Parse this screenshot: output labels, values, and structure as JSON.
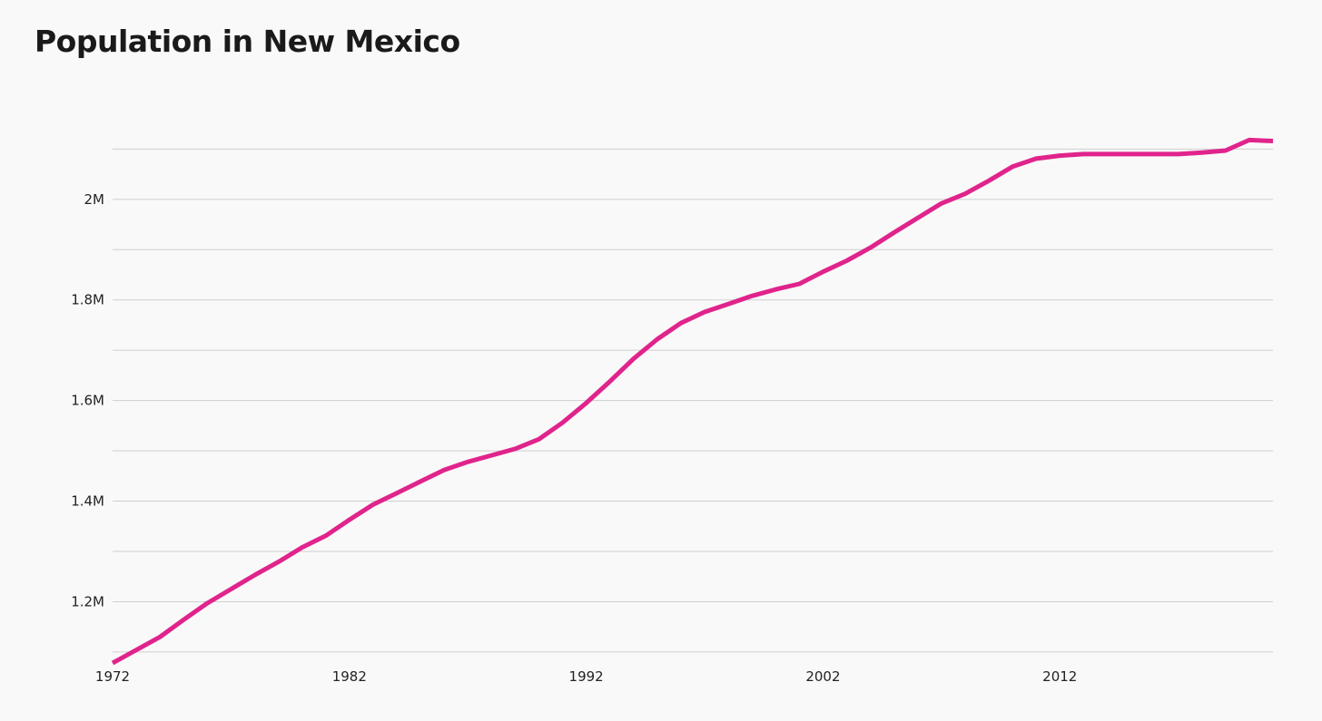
{
  "colors": {
    "line": "#e0248c",
    "grid": "#cfcfcf",
    "background": "#f9f9f9"
  },
  "chart_data": {
    "type": "line",
    "title": "Population in New Mexico",
    "xlabel": "",
    "ylabel": "",
    "xlim": [
      1972,
      2021
    ],
    "ylim": [
      1080000,
      2180000
    ],
    "x_ticks": [
      1972,
      1982,
      1992,
      2002,
      2012
    ],
    "x_tick_labels": [
      "1972",
      "1982",
      "1992",
      "2002",
      "2012"
    ],
    "y_gridlines": [
      1100000,
      1200000,
      1300000,
      1400000,
      1500000,
      1600000,
      1700000,
      1800000,
      1900000,
      2000000,
      2100000
    ],
    "y_ticks": [
      1200000,
      1400000,
      1600000,
      1800000,
      2000000
    ],
    "y_tick_labels": [
      "1.2M",
      "1.4M",
      "1.6M",
      "1.8M",
      "2M"
    ],
    "grid": true,
    "series": [
      {
        "x": [
          1972,
          1973,
          1974,
          1975,
          1976,
          1977,
          1978,
          1979,
          1980,
          1981,
          1982,
          1983,
          1984,
          1985,
          1986,
          1987,
          1988,
          1989,
          1990,
          1991,
          1992,
          1993,
          1994,
          1995,
          1996,
          1997,
          1998,
          1999,
          2000,
          2001,
          2002,
          2003,
          2004,
          2005,
          2006,
          2007,
          2008,
          2009,
          2010,
          2011,
          2012,
          2013,
          2014,
          2015,
          2016,
          2017,
          2018,
          2019,
          2020,
          2021
        ],
        "values": [
          1078000,
          1104000,
          1130000,
          1164000,
          1197000,
          1225000,
          1253000,
          1279000,
          1308000,
          1331000,
          1363000,
          1393000,
          1416000,
          1439000,
          1462000,
          1478000,
          1491000,
          1504000,
          1523000,
          1556000,
          1595000,
          1638000,
          1683000,
          1722000,
          1754000,
          1776000,
          1792000,
          1808000,
          1821000,
          1832000,
          1856000,
          1878000,
          1904000,
          1934000,
          1963000,
          1992000,
          2011000,
          2037000,
          2065000,
          2081000,
          2087000,
          2090000,
          2090000,
          2090000,
          2090000,
          2090000,
          2093000,
          2097000,
          2118000,
          2116000
        ]
      }
    ]
  }
}
